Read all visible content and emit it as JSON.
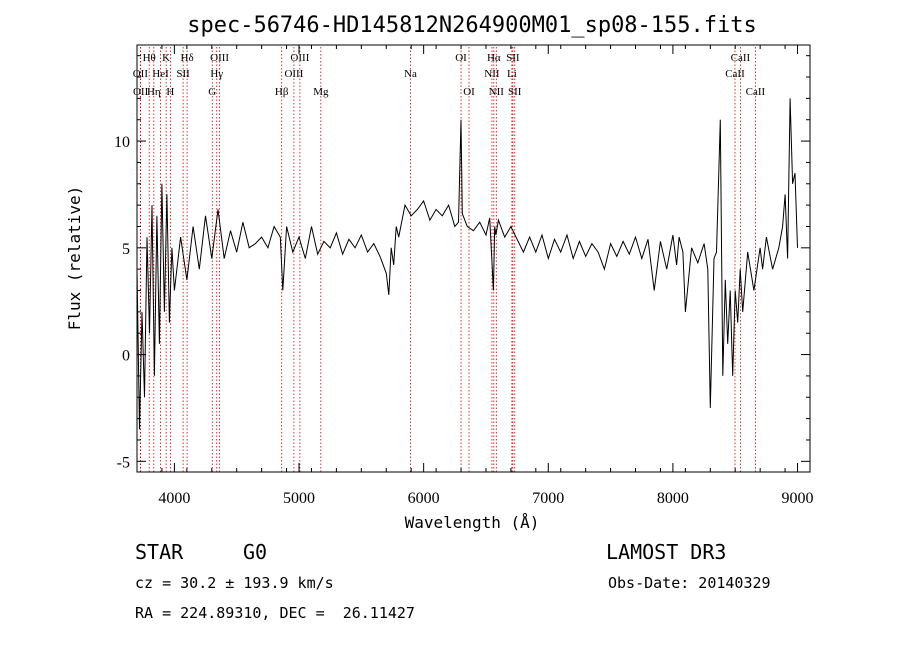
{
  "chart_data": {
    "type": "line",
    "title": "spec-56746-HD145812N264900M01_sp08-155.fits",
    "xlabel": "Wavelength (Å)",
    "ylabel": "Flux (relative)",
    "xlim": [
      3700,
      9100
    ],
    "ylim": [
      -5.5,
      14.5
    ],
    "xticks": [
      4000,
      5000,
      6000,
      7000,
      8000,
      9000
    ],
    "yticks": [
      -5,
      0,
      5,
      10
    ],
    "line_color": "#000000",
    "marker_color": "#cc0000",
    "emission_lines": [
      {
        "label": "OII",
        "wavelength": 3727,
        "row": 2
      },
      {
        "label": "OII",
        "wavelength": 3729,
        "row": 3
      },
      {
        "label": "Hθ",
        "wavelength": 3798,
        "row": 1
      },
      {
        "label": "Hη",
        "wavelength": 3835,
        "row": 3
      },
      {
        "label": "HeI",
        "wavelength": 3889,
        "row": 2
      },
      {
        "label": "K",
        "wavelength": 3934,
        "row": 1
      },
      {
        "label": "H",
        "wavelength": 3968,
        "row": 3
      },
      {
        "label": "SII",
        "wavelength": 4070,
        "row": 2
      },
      {
        "label": "Hδ",
        "wavelength": 4102,
        "row": 1
      },
      {
        "label": "G",
        "wavelength": 4304,
        "row": 3
      },
      {
        "label": "Hγ",
        "wavelength": 4340,
        "row": 2
      },
      {
        "label": "OIII",
        "wavelength": 4363,
        "row": 1
      },
      {
        "label": "Hβ",
        "wavelength": 4861,
        "row": 3
      },
      {
        "label": "OIII",
        "wavelength": 4959,
        "row": 2
      },
      {
        "label": "OIII",
        "wavelength": 5007,
        "row": 1
      },
      {
        "label": "Mg",
        "wavelength": 5175,
        "row": 3
      },
      {
        "label": "Na",
        "wavelength": 5894,
        "row": 2
      },
      {
        "label": "OI",
        "wavelength": 6300,
        "row": 1
      },
      {
        "label": "OI",
        "wavelength": 6364,
        "row": 3
      },
      {
        "label": "NII",
        "wavelength": 6548,
        "row": 2
      },
      {
        "label": "Hα",
        "wavelength": 6563,
        "row": 1
      },
      {
        "label": "NII",
        "wavelength": 6583,
        "row": 3
      },
      {
        "label": "Li",
        "wavelength": 6708,
        "row": 2
      },
      {
        "label": "SII",
        "wavelength": 6716,
        "row": 1
      },
      {
        "label": "SII",
        "wavelength": 6731,
        "row": 3
      },
      {
        "label": "CaII",
        "wavelength": 8498,
        "row": 2
      },
      {
        "label": "CaII",
        "wavelength": 8542,
        "row": 1
      },
      {
        "label": "CaII",
        "wavelength": 8662,
        "row": 3
      }
    ],
    "spectrum": {
      "x": [
        3700,
        3720,
        3740,
        3760,
        3780,
        3800,
        3820,
        3840,
        3860,
        3880,
        3900,
        3920,
        3940,
        3960,
        3980,
        4000,
        4050,
        4100,
        4150,
        4200,
        4250,
        4300,
        4350,
        4400,
        4450,
        4500,
        4550,
        4600,
        4650,
        4700,
        4750,
        4800,
        4850,
        4870,
        4900,
        4950,
        5000,
        5050,
        5100,
        5150,
        5200,
        5250,
        5300,
        5350,
        5400,
        5450,
        5500,
        5550,
        5600,
        5650,
        5700,
        5720,
        5740,
        5760,
        5780,
        5800,
        5850,
        5900,
        5950,
        6000,
        6050,
        6100,
        6150,
        6200,
        6250,
        6280,
        6300,
        6310,
        6350,
        6400,
        6450,
        6500,
        6530,
        6560,
        6570,
        6580,
        6600,
        6650,
        6700,
        6750,
        6800,
        6850,
        6900,
        6950,
        7000,
        7050,
        7100,
        7150,
        7200,
        7250,
        7300,
        7350,
        7400,
        7450,
        7500,
        7550,
        7600,
        7650,
        7700,
        7750,
        7800,
        7850,
        7900,
        7950,
        8000,
        8030,
        8050,
        8080,
        8100,
        8150,
        8200,
        8250,
        8280,
        8300,
        8330,
        8350,
        8380,
        8400,
        8420,
        8440,
        8460,
        8480,
        8500,
        8520,
        8540,
        8560,
        8600,
        8650,
        8700,
        8720,
        8750,
        8800,
        8850,
        8880,
        8900,
        8920,
        8940,
        8960,
        8980,
        9000
      ],
      "y": [
        4.0,
        -3.5,
        2.0,
        -2.0,
        5.5,
        1.0,
        7.0,
        -1.0,
        6.5,
        0.5,
        8.0,
        2.0,
        7.5,
        1.5,
        5.0,
        3.0,
        5.5,
        3.5,
        6.0,
        4.0,
        6.5,
        4.5,
        6.8,
        4.5,
        5.8,
        4.8,
        6.2,
        5.0,
        5.2,
        5.5,
        5.0,
        6.0,
        5.5,
        3.0,
        6.0,
        4.8,
        5.5,
        4.5,
        6.0,
        4.7,
        5.3,
        5.0,
        5.7,
        4.7,
        5.4,
        5.0,
        5.6,
        4.8,
        5.2,
        4.6,
        3.8,
        2.8,
        5.0,
        4.2,
        6.0,
        5.5,
        7.0,
        6.5,
        6.8,
        7.2,
        6.3,
        6.8,
        6.5,
        7.0,
        6.0,
        6.2,
        11.0,
        6.6,
        6.0,
        5.8,
        6.2,
        5.6,
        6.4,
        3.0,
        6.0,
        5.6,
        6.3,
        5.5,
        6.0,
        5.4,
        4.8,
        5.5,
        4.8,
        5.6,
        4.5,
        5.4,
        4.8,
        5.6,
        4.5,
        5.3,
        4.6,
        5.2,
        4.8,
        4.0,
        5.2,
        4.6,
        5.3,
        4.7,
        5.5,
        4.5,
        5.4,
        3.0,
        5.3,
        4.0,
        5.6,
        4.2,
        5.5,
        4.8,
        2.0,
        5.0,
        4.3,
        5.2,
        4.0,
        -2.5,
        4.5,
        4.8,
        11.0,
        -1.0,
        3.5,
        0.5,
        3.0,
        -1.0,
        3.0,
        1.5,
        4.0,
        2.0,
        4.8,
        3.0,
        5.0,
        4.0,
        5.5,
        4.0,
        5.0,
        6.0,
        7.5,
        4.5,
        12.0,
        8.0,
        8.5,
        5.0
      ]
    }
  },
  "footer": {
    "object_type": "STAR",
    "spectral_class": "G0",
    "survey": "LAMOST DR3",
    "cz": "cz = 30.2 ± 193.9 km/s",
    "obs_date": "Obs-Date: 20140329",
    "coords": "RA = 224.89310, DEC =  26.11427"
  }
}
